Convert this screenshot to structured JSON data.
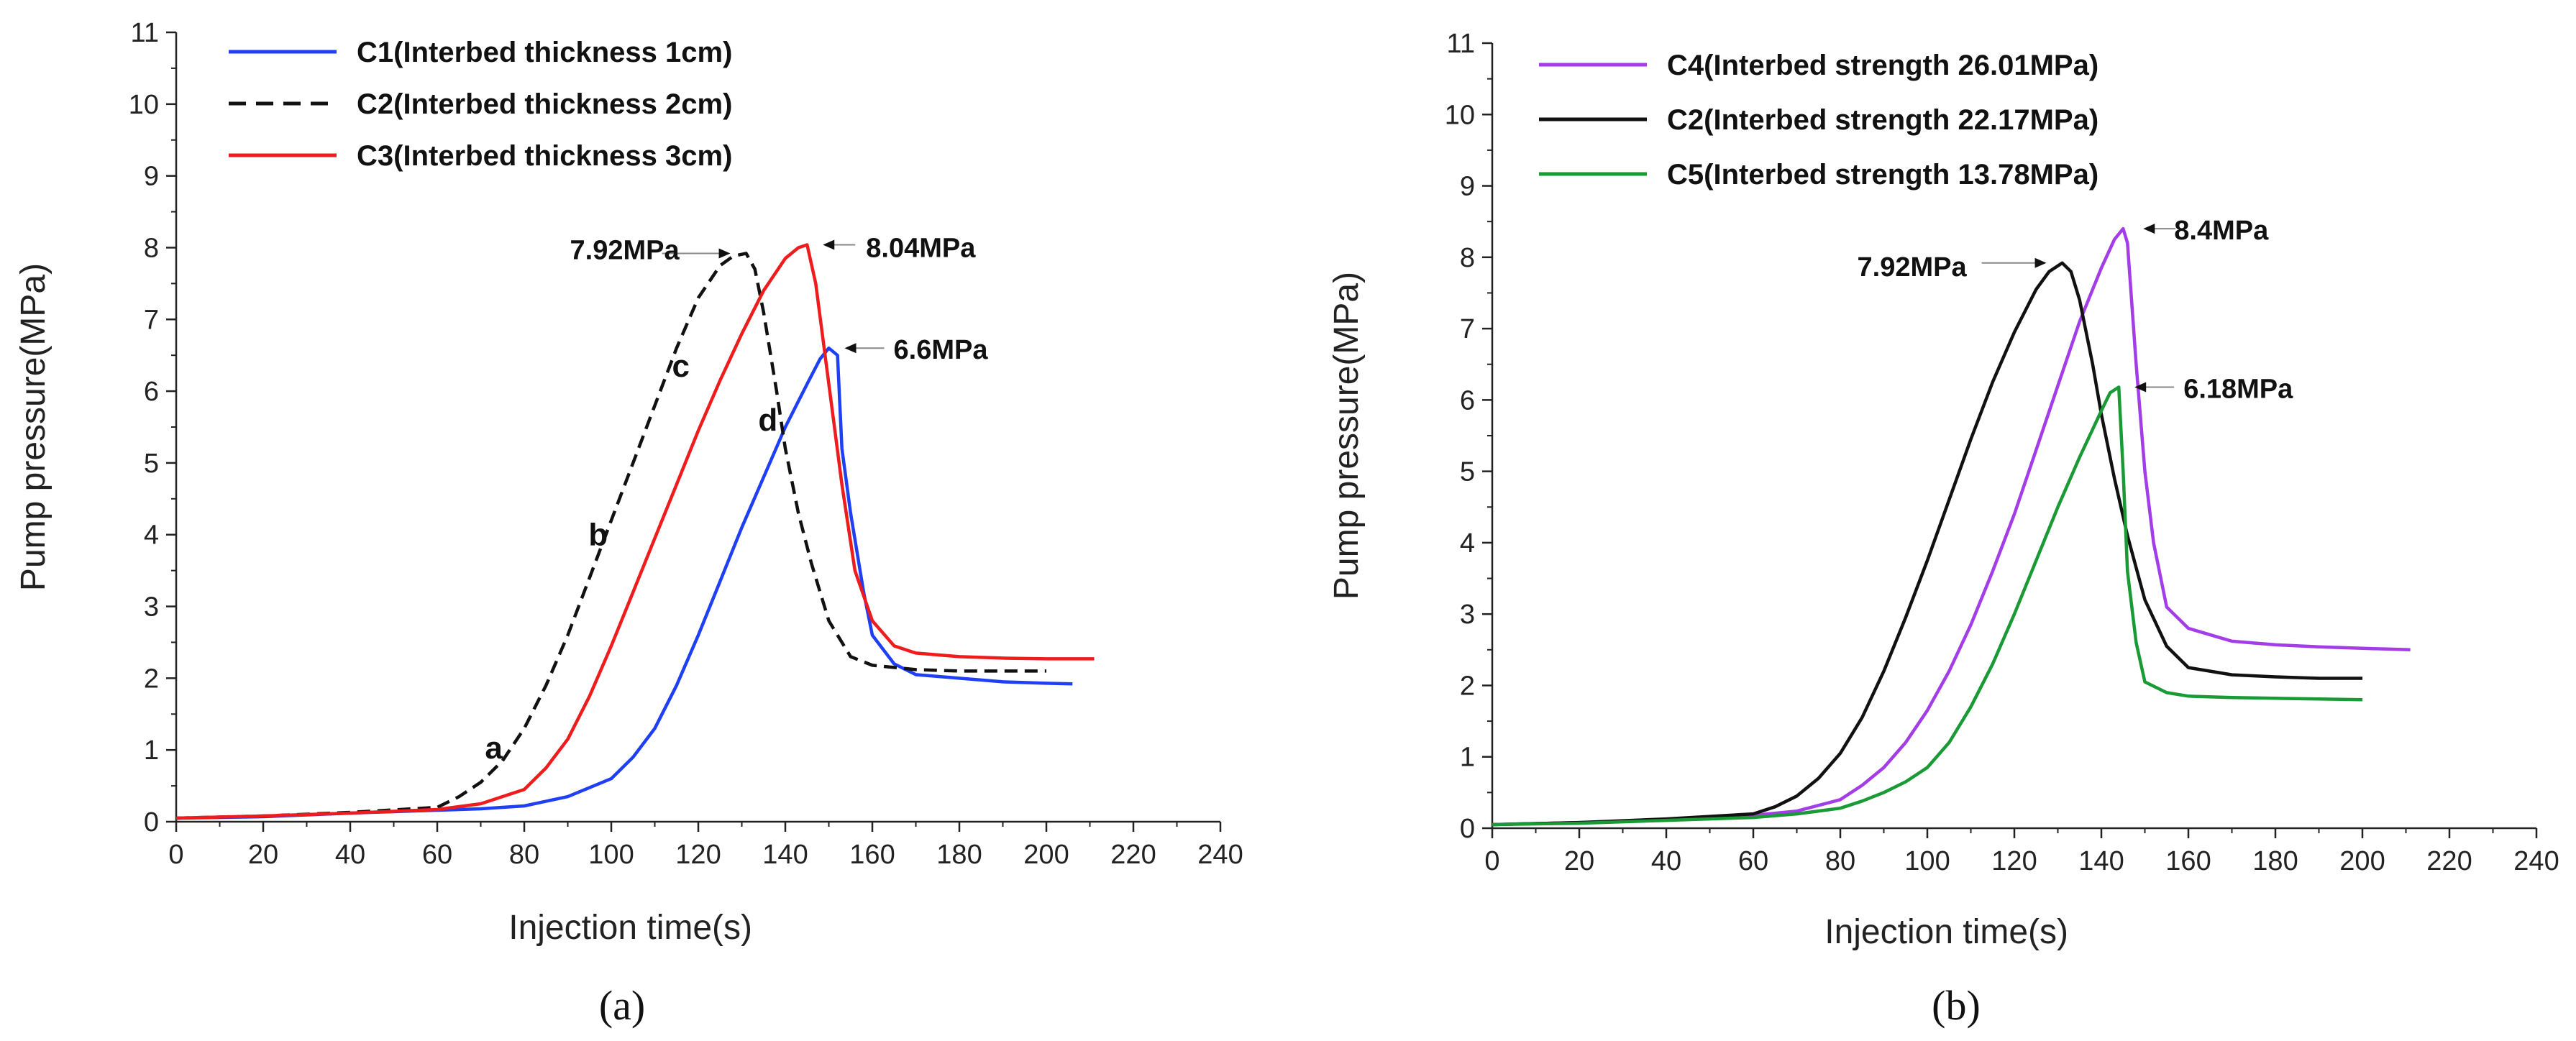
{
  "colors": {
    "C1": "#1f3ff5",
    "C2": "#111111",
    "C3": "#ee1c1c",
    "C4": "#a23de8",
    "C5": "#1a9a35",
    "axis": "#222222",
    "annotation_arrow": "#111111"
  },
  "chart_data": [
    {
      "type": "line",
      "caption": "(a)",
      "xlabel": "Injection time(s)",
      "ylabel": "Pump pressure(MPa)",
      "xlim": [
        0,
        240
      ],
      "ylim": [
        0,
        11
      ],
      "xticks": [
        0,
        20,
        40,
        60,
        80,
        100,
        120,
        140,
        160,
        180,
        200,
        220,
        240
      ],
      "yticks": [
        0,
        1,
        2,
        3,
        4,
        5,
        6,
        7,
        8,
        9,
        10,
        11
      ],
      "legend_position": "top-left",
      "series": [
        {
          "name": "C1(Interbed thickness 1cm)",
          "key": "C1",
          "style": "solid",
          "x": [
            0,
            20,
            40,
            60,
            70,
            80,
            90,
            100,
            105,
            110,
            115,
            120,
            125,
            130,
            135,
            140,
            145,
            148,
            150,
            152,
            153,
            155,
            158,
            160,
            165,
            170,
            180,
            190,
            200,
            206
          ],
          "y": [
            0.05,
            0.07,
            0.12,
            0.16,
            0.18,
            0.22,
            0.35,
            0.6,
            0.9,
            1.3,
            1.9,
            2.6,
            3.35,
            4.1,
            4.8,
            5.5,
            6.1,
            6.45,
            6.6,
            6.5,
            5.2,
            4.3,
            3.2,
            2.6,
            2.2,
            2.05,
            2.0,
            1.95,
            1.93,
            1.92
          ]
        },
        {
          "name": "C2(Interbed thickness 2cm)",
          "key": "C2",
          "style": "dashed",
          "x": [
            0,
            20,
            40,
            60,
            65,
            70,
            75,
            80,
            85,
            90,
            95,
            100,
            105,
            110,
            115,
            120,
            125,
            128,
            131,
            133,
            135,
            138,
            140,
            143,
            146,
            150,
            155,
            160,
            170,
            180,
            190,
            200
          ],
          "y": [
            0.05,
            0.08,
            0.13,
            0.2,
            0.35,
            0.55,
            0.85,
            1.3,
            1.9,
            2.6,
            3.4,
            4.2,
            5.0,
            5.8,
            6.6,
            7.3,
            7.75,
            7.88,
            7.92,
            7.7,
            7.1,
            6.0,
            5.2,
            4.3,
            3.6,
            2.8,
            2.3,
            2.18,
            2.12,
            2.1,
            2.1,
            2.1
          ]
        },
        {
          "name": "C3(Interbed thickness 3cm)",
          "key": "C3",
          "style": "solid",
          "x": [
            0,
            20,
            40,
            60,
            70,
            80,
            85,
            90,
            95,
            100,
            105,
            110,
            115,
            120,
            125,
            130,
            135,
            140,
            143,
            145,
            147,
            150,
            153,
            156,
            160,
            165,
            170,
            180,
            190,
            200,
            211
          ],
          "y": [
            0.05,
            0.08,
            0.12,
            0.17,
            0.25,
            0.45,
            0.75,
            1.15,
            1.75,
            2.45,
            3.2,
            3.95,
            4.7,
            5.45,
            6.15,
            6.8,
            7.4,
            7.85,
            8.0,
            8.04,
            7.5,
            6.1,
            4.7,
            3.5,
            2.8,
            2.45,
            2.35,
            2.3,
            2.28,
            2.27,
            2.27
          ]
        }
      ],
      "annotations": [
        {
          "text": "7.92MPa",
          "x": 131,
          "y": 7.92,
          "side": "left"
        },
        {
          "text": "8.04MPa",
          "x": 145,
          "y": 8.04,
          "side": "right"
        },
        {
          "text": "6.6MPa",
          "x": 150,
          "y": 6.6,
          "side": "right"
        }
      ],
      "point_labels": [
        {
          "text": "a",
          "x": 73,
          "y": 0.88
        },
        {
          "text": "b",
          "x": 97,
          "y": 3.85
        },
        {
          "text": "c",
          "x": 116,
          "y": 6.2
        },
        {
          "text": "d",
          "x": 136,
          "y": 5.45
        }
      ]
    },
    {
      "type": "line",
      "caption": "(b)",
      "xlabel": "Injection time(s)",
      "ylabel": "Pump pressure(MPa)",
      "xlim": [
        0,
        240
      ],
      "ylim": [
        0,
        11
      ],
      "xticks": [
        0,
        20,
        40,
        60,
        80,
        100,
        120,
        140,
        160,
        180,
        200,
        220,
        240
      ],
      "yticks": [
        0,
        1,
        2,
        3,
        4,
        5,
        6,
        7,
        8,
        9,
        10,
        11
      ],
      "legend_position": "top-left",
      "series": [
        {
          "name": "C4(Interbed strength 26.01MPa)",
          "key": "C4",
          "style": "solid",
          "x": [
            0,
            20,
            40,
            60,
            70,
            80,
            85,
            90,
            95,
            100,
            105,
            110,
            115,
            120,
            125,
            130,
            135,
            140,
            143,
            145,
            146,
            148,
            150,
            152,
            155,
            160,
            170,
            180,
            190,
            200,
            211
          ],
          "y": [
            0.05,
            0.08,
            0.12,
            0.18,
            0.24,
            0.4,
            0.6,
            0.85,
            1.2,
            1.65,
            2.2,
            2.85,
            3.6,
            4.4,
            5.3,
            6.2,
            7.1,
            7.85,
            8.25,
            8.4,
            8.2,
            6.5,
            5.0,
            4.0,
            3.1,
            2.8,
            2.62,
            2.57,
            2.54,
            2.52,
            2.5
          ]
        },
        {
          "name": "C2(Interbed strength 22.17MPa)",
          "key": "C2",
          "style": "solid",
          "x": [
            0,
            20,
            40,
            60,
            65,
            70,
            75,
            80,
            85,
            90,
            95,
            100,
            105,
            110,
            115,
            120,
            125,
            128,
            131,
            133,
            135,
            138,
            140,
            143,
            146,
            150,
            155,
            160,
            170,
            180,
            190,
            200
          ],
          "y": [
            0.05,
            0.08,
            0.13,
            0.2,
            0.3,
            0.45,
            0.7,
            1.05,
            1.55,
            2.2,
            2.95,
            3.75,
            4.6,
            5.45,
            6.25,
            6.95,
            7.55,
            7.8,
            7.92,
            7.8,
            7.4,
            6.5,
            5.8,
            4.9,
            4.1,
            3.2,
            2.55,
            2.25,
            2.15,
            2.12,
            2.1,
            2.1
          ]
        },
        {
          "name": "C5(Interbed strength 13.78MPa)",
          "key": "C5",
          "style": "solid",
          "x": [
            0,
            20,
            40,
            60,
            70,
            80,
            85,
            90,
            95,
            100,
            105,
            110,
            115,
            120,
            125,
            130,
            135,
            140,
            142,
            144,
            145,
            146,
            148,
            150,
            155,
            160,
            170,
            180,
            190,
            200
          ],
          "y": [
            0.05,
            0.07,
            0.11,
            0.15,
            0.2,
            0.28,
            0.38,
            0.5,
            0.65,
            0.85,
            1.2,
            1.7,
            2.3,
            3.0,
            3.75,
            4.5,
            5.2,
            5.85,
            6.1,
            6.18,
            5.0,
            3.6,
            2.6,
            2.05,
            1.9,
            1.85,
            1.83,
            1.82,
            1.81,
            1.8
          ]
        }
      ],
      "annotations": [
        {
          "text": "7.92MPa",
          "x": 131,
          "y": 7.92,
          "side": "left"
        },
        {
          "text": "8.4MPa",
          "x": 146,
          "y": 8.4,
          "side": "right"
        },
        {
          "text": "6.18MPa",
          "x": 144,
          "y": 6.18,
          "side": "right"
        }
      ],
      "point_labels": []
    }
  ]
}
